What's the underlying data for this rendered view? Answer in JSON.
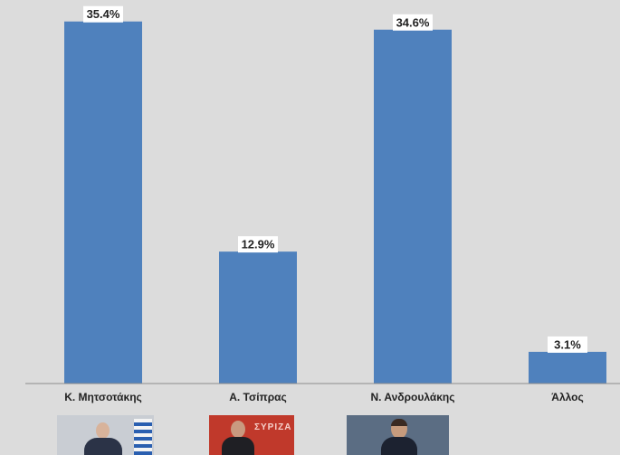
{
  "chart_data": {
    "type": "bar",
    "categories": [
      "Κ. Μητσοτάκης",
      "Α. Τσίπρας",
      "Ν. Ανδρουλάκης",
      "Άλλος"
    ],
    "values": [
      35.4,
      12.9,
      34.6,
      3.1
    ],
    "data_labels": [
      "35.4%",
      "12.9%",
      "34.6%",
      "3.1%"
    ],
    "unit": "%",
    "ylim": [
      0,
      37.5
    ],
    "grid": false,
    "legend": "none",
    "bar_color": "#4f81bd",
    "background_color": "#dcdcdc"
  },
  "photos": [
    {
      "icon": "portrait-photo",
      "subject": "Κ. Μητσοτάκης"
    },
    {
      "icon": "portrait-photo",
      "subject": "Α. Τσίπρας",
      "text": "ΣΥΡΙΖΑ"
    },
    {
      "icon": "portrait-photo",
      "subject": "Ν. Ανδρουλάκης"
    }
  ]
}
